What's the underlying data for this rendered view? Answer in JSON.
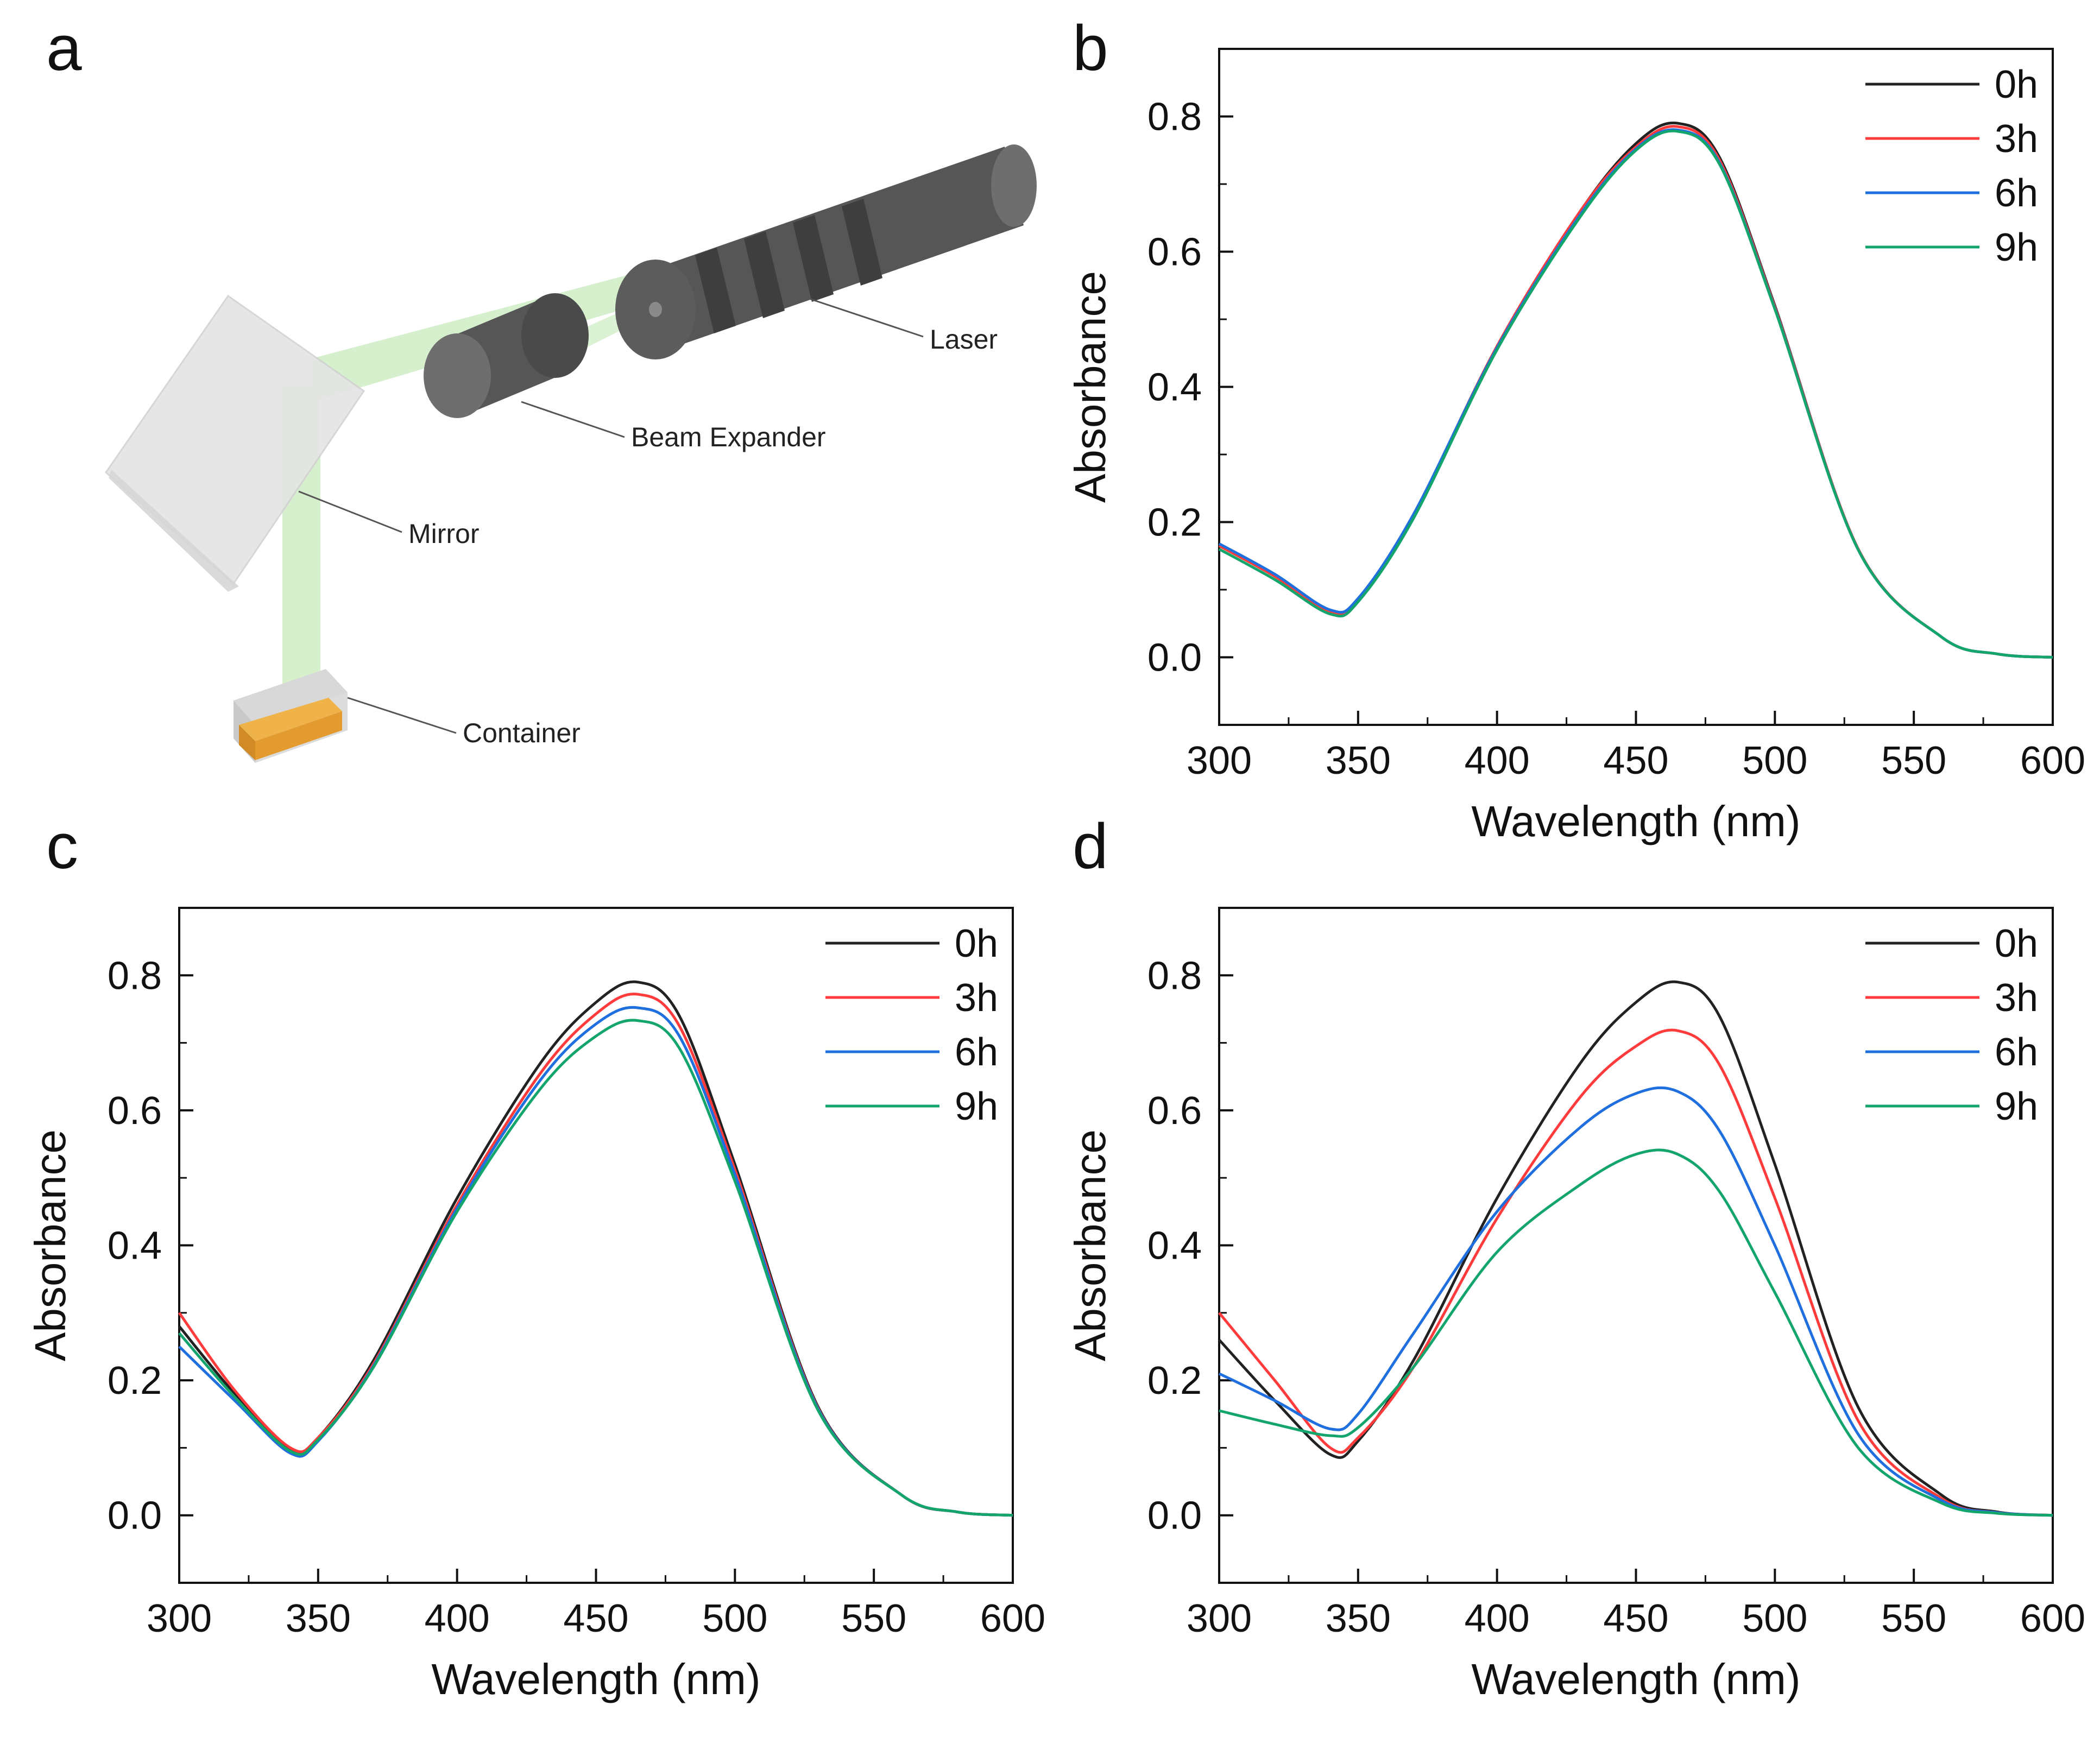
{
  "panels": {
    "a": "a",
    "b": "b",
    "c": "c",
    "d": "d"
  },
  "setup": {
    "labels": {
      "laser": "Laser",
      "beam_expander": "Beam Expander",
      "mirror": "Mirror",
      "container": "Container"
    },
    "colors": {
      "device": "#5a5a5a",
      "beam": "#bfe6b5",
      "mirror": "#e6e6e6",
      "liquid": "#e3a33a"
    }
  },
  "chart_data": [
    {
      "panel": "b",
      "type": "line",
      "xlabel": "Wavelength (nm)",
      "ylabel": "Absorbance",
      "xlim": [
        300,
        600
      ],
      "ylim": [
        -0.1,
        0.9
      ],
      "xticks": [
        300,
        350,
        400,
        450,
        500,
        550,
        600
      ],
      "yticks": [
        0.0,
        0.2,
        0.4,
        0.6,
        0.8
      ],
      "x": [
        300,
        320,
        340,
        350,
        370,
        400,
        430,
        450,
        465,
        480,
        500,
        530,
        560,
        580,
        600
      ],
      "series": [
        {
          "name": "0h",
          "color": "#222222",
          "values": [
            0.165,
            0.12,
            0.068,
            0.085,
            0.21,
            0.46,
            0.66,
            0.76,
            0.79,
            0.74,
            0.52,
            0.16,
            0.03,
            0.005,
            0.0
          ]
        },
        {
          "name": "3h",
          "color": "#ff3b3b",
          "values": [
            0.165,
            0.12,
            0.068,
            0.085,
            0.21,
            0.46,
            0.66,
            0.755,
            0.785,
            0.736,
            0.518,
            0.16,
            0.03,
            0.005,
            0.0
          ]
        },
        {
          "name": "6h",
          "color": "#1f6fde",
          "values": [
            0.168,
            0.123,
            0.07,
            0.087,
            0.212,
            0.458,
            0.655,
            0.752,
            0.78,
            0.732,
            0.516,
            0.159,
            0.03,
            0.005,
            0.0
          ]
        },
        {
          "name": "9h",
          "color": "#14a56c",
          "values": [
            0.16,
            0.115,
            0.064,
            0.082,
            0.206,
            0.455,
            0.652,
            0.75,
            0.778,
            0.73,
            0.515,
            0.159,
            0.03,
            0.005,
            0.0
          ]
        }
      ]
    },
    {
      "panel": "c",
      "type": "line",
      "xlabel": "Wavelength (nm)",
      "ylabel": "Absorbance",
      "xlim": [
        300,
        600
      ],
      "ylim": [
        -0.1,
        0.9
      ],
      "xticks": [
        300,
        350,
        400,
        450,
        500,
        550,
        600
      ],
      "yticks": [
        0.0,
        0.2,
        0.4,
        0.6,
        0.8
      ],
      "x": [
        300,
        320,
        340,
        350,
        370,
        400,
        430,
        450,
        465,
        480,
        500,
        530,
        560,
        580,
        600
      ],
      "series": [
        {
          "name": "0h",
          "color": "#222222",
          "values": [
            0.28,
            0.18,
            0.098,
            0.115,
            0.23,
            0.47,
            0.67,
            0.76,
            0.79,
            0.74,
            0.52,
            0.16,
            0.03,
            0.005,
            0.0
          ]
        },
        {
          "name": "3h",
          "color": "#ff3b3b",
          "values": [
            0.3,
            0.185,
            0.1,
            0.115,
            0.225,
            0.46,
            0.655,
            0.743,
            0.772,
            0.725,
            0.512,
            0.158,
            0.03,
            0.005,
            0.0
          ]
        },
        {
          "name": "6h",
          "color": "#1f6fde",
          "values": [
            0.25,
            0.17,
            0.092,
            0.11,
            0.222,
            0.455,
            0.645,
            0.728,
            0.752,
            0.71,
            0.505,
            0.157,
            0.03,
            0.005,
            0.0
          ]
        },
        {
          "name": "9h",
          "color": "#14a56c",
          "values": [
            0.27,
            0.175,
            0.095,
            0.112,
            0.22,
            0.45,
            0.632,
            0.71,
            0.733,
            0.692,
            0.495,
            0.155,
            0.03,
            0.005,
            0.0
          ]
        }
      ]
    },
    {
      "panel": "d",
      "type": "line",
      "xlabel": "Wavelength (nm)",
      "ylabel": "Absorbance",
      "xlim": [
        300,
        600
      ],
      "ylim": [
        -0.1,
        0.9
      ],
      "xticks": [
        300,
        350,
        400,
        450,
        500,
        550,
        600
      ],
      "yticks": [
        0.0,
        0.2,
        0.4,
        0.6,
        0.8
      ],
      "x": [
        300,
        320,
        340,
        350,
        370,
        400,
        430,
        450,
        465,
        480,
        500,
        530,
        560,
        580,
        600
      ],
      "series": [
        {
          "name": "0h",
          "color": "#222222",
          "values": [
            0.26,
            0.17,
            0.09,
            0.11,
            0.23,
            0.47,
            0.67,
            0.76,
            0.79,
            0.74,
            0.52,
            0.16,
            0.03,
            0.005,
            0.0
          ]
        },
        {
          "name": "3h",
          "color": "#ff3b3b",
          "values": [
            0.3,
            0.2,
            0.1,
            0.115,
            0.22,
            0.44,
            0.62,
            0.695,
            0.718,
            0.668,
            0.47,
            0.14,
            0.025,
            0.004,
            0.0
          ]
        },
        {
          "name": "6h",
          "color": "#1f6fde",
          "values": [
            0.21,
            0.17,
            0.128,
            0.15,
            0.27,
            0.45,
            0.575,
            0.625,
            0.628,
            0.57,
            0.4,
            0.12,
            0.022,
            0.004,
            0.0
          ]
        },
        {
          "name": "9h",
          "color": "#14a56c",
          "values": [
            0.155,
            0.135,
            0.118,
            0.13,
            0.22,
            0.39,
            0.49,
            0.535,
            0.535,
            0.48,
            0.33,
            0.1,
            0.018,
            0.003,
            0.0
          ]
        }
      ]
    }
  ]
}
